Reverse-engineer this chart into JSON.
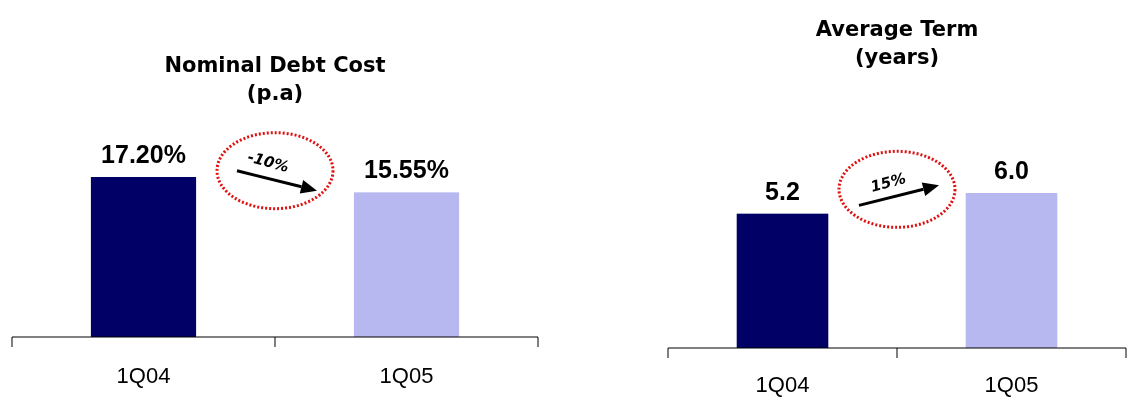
{
  "chart_data": [
    {
      "type": "bar",
      "title": "Nominal Debt Cost\n(p.a)",
      "categories": [
        "1Q04",
        "1Q05"
      ],
      "colors": [
        "#000066",
        "#b8b8f0"
      ],
      "values": [
        17.2,
        15.55
      ],
      "value_labels": [
        "17.20%",
        "15.55%"
      ],
      "annotations": [
        "-10%"
      ],
      "tick_labels": "x"
    },
    {
      "type": "bar",
      "title": "Average Term\n(years)",
      "categories": [
        "1Q04",
        "1Q05"
      ],
      "colors": [
        "#000066",
        "#b8b8f0"
      ],
      "values": [
        5.2,
        6.0
      ],
      "value_labels": [
        "5.2",
        "6.0"
      ],
      "annotations": [
        "15%"
      ],
      "tick_labels": "x"
    }
  ]
}
